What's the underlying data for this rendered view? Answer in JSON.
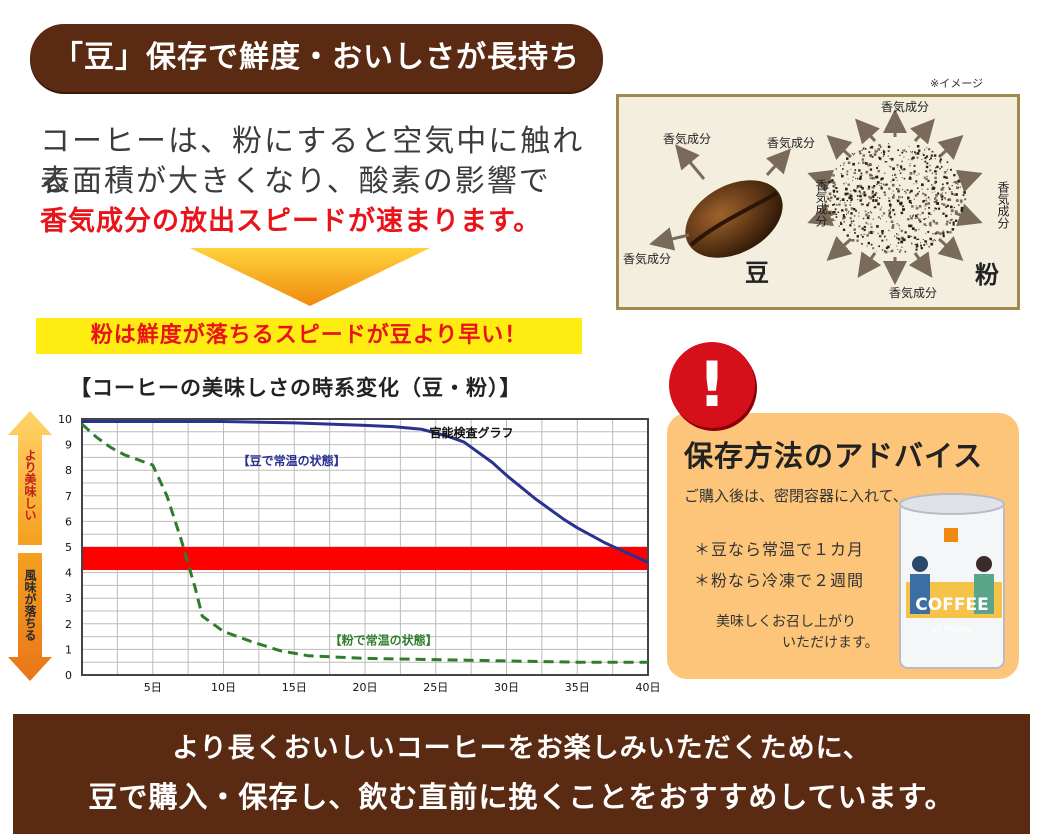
{
  "header": {
    "title": "「豆」保存で鮮度・おいしさが長持ち"
  },
  "intro": {
    "line1": "コーヒーは、粉にすると空気中に触れる",
    "line2": "表面積が大きくなり、酸素の影響で",
    "line3_highlight": "香気成分の放出スピードが速まります。"
  },
  "highlight": "粉は鮮度が落ちるスピードが豆より早い！",
  "image": {
    "note": "※イメージ",
    "aroma_label": "香気成分",
    "bean_label": "豆",
    "powder_label": "粉"
  },
  "chart_data": {
    "type": "line",
    "title": "【コーヒーの美味しさの時系変化（豆・粉）】",
    "subtitle": "官能検査グラフ",
    "xlim": [
      0,
      40
    ],
    "ylim": [
      0,
      10
    ],
    "x_ticks": [
      5,
      10,
      15,
      20,
      25,
      30,
      35,
      40
    ],
    "x_tick_labels": [
      "5日",
      "10日",
      "15日",
      "20日",
      "25日",
      "30日",
      "35日",
      "40日"
    ],
    "y_ticks": [
      0,
      1,
      2,
      3,
      4,
      5,
      6,
      7,
      8,
      9,
      10
    ],
    "grid": true,
    "y_axis_upper_label": "より美味しい",
    "y_axis_lower_label": "風味が落ちる",
    "threshold_band": {
      "from": 4.1,
      "to": 5.0,
      "color": "#ff0000"
    },
    "series": [
      {
        "name": "【豆で常温の状態】",
        "color": "#2a3290",
        "style": "solid",
        "x": [
          0,
          5,
          10,
          15,
          20,
          22,
          24,
          25,
          26,
          27,
          28,
          29,
          30,
          31,
          32,
          33,
          34,
          35,
          36,
          37,
          38,
          39,
          40
        ],
        "y": [
          9.9,
          9.9,
          9.9,
          9.85,
          9.75,
          9.7,
          9.6,
          9.45,
          9.3,
          9.1,
          8.7,
          8.3,
          7.8,
          7.35,
          6.9,
          6.5,
          6.1,
          5.75,
          5.45,
          5.15,
          4.9,
          4.65,
          4.4
        ]
      },
      {
        "name": "【粉で常温の状態】",
        "color": "#2e7d2e",
        "style": "dashed",
        "x": [
          0,
          1,
          2,
          3,
          4,
          5,
          6,
          7,
          8,
          8.5,
          9,
          10,
          12,
          14,
          16,
          18,
          20,
          25,
          30,
          35,
          40
        ],
        "y": [
          9.8,
          9.3,
          8.9,
          8.6,
          8.4,
          8.2,
          7.0,
          5.3,
          3.4,
          2.3,
          2.1,
          1.7,
          1.3,
          0.95,
          0.75,
          0.7,
          0.65,
          0.6,
          0.55,
          0.5,
          0.5
        ]
      }
    ]
  },
  "advice": {
    "exclaim": "!",
    "title": "保存方法のアドバイス",
    "intro": "ご購入後は、密閉容器に入れて、",
    "bean": "＊豆なら常温で１カ月",
    "powder": "＊粉なら冷凍で２週間",
    "closing_line1": "美味しくお召し上がり",
    "closing_line2": "いただけます。",
    "can_text": "COFFEE",
    "can_subtext": "at home"
  },
  "footer": {
    "line1": "より長くおいしいコーヒーをお楽しみいただくために、",
    "line2": "豆で購入・保存し、飲む直前に挽くことをおすすめしています。"
  }
}
